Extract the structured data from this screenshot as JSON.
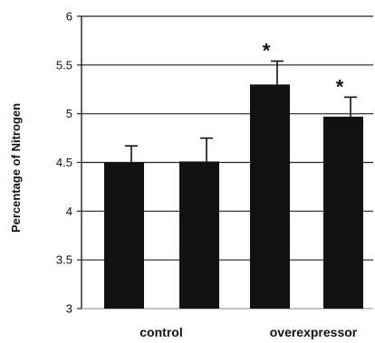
{
  "chart_data": {
    "type": "bar",
    "title": "",
    "xlabel": "",
    "ylabel": "Percentage of Nitrogen",
    "ylim": [
      3,
      6
    ],
    "yticks": [
      "3",
      "3.5",
      "4",
      "4.5",
      "5",
      "5.5",
      "6"
    ],
    "grid": true,
    "bar_color": "#111111",
    "groups": [
      "control",
      "overexpressor"
    ],
    "bars": [
      {
        "group": "control",
        "value": 4.5,
        "error": 0.17,
        "significant": false
      },
      {
        "group": "control",
        "value": 4.51,
        "error": 0.24,
        "significant": false
      },
      {
        "group": "overexpressor",
        "value": 5.3,
        "error": 0.24,
        "significant": true
      },
      {
        "group": "overexpressor",
        "value": 4.97,
        "error": 0.2,
        "significant": true
      }
    ],
    "significance_marker": "*"
  }
}
